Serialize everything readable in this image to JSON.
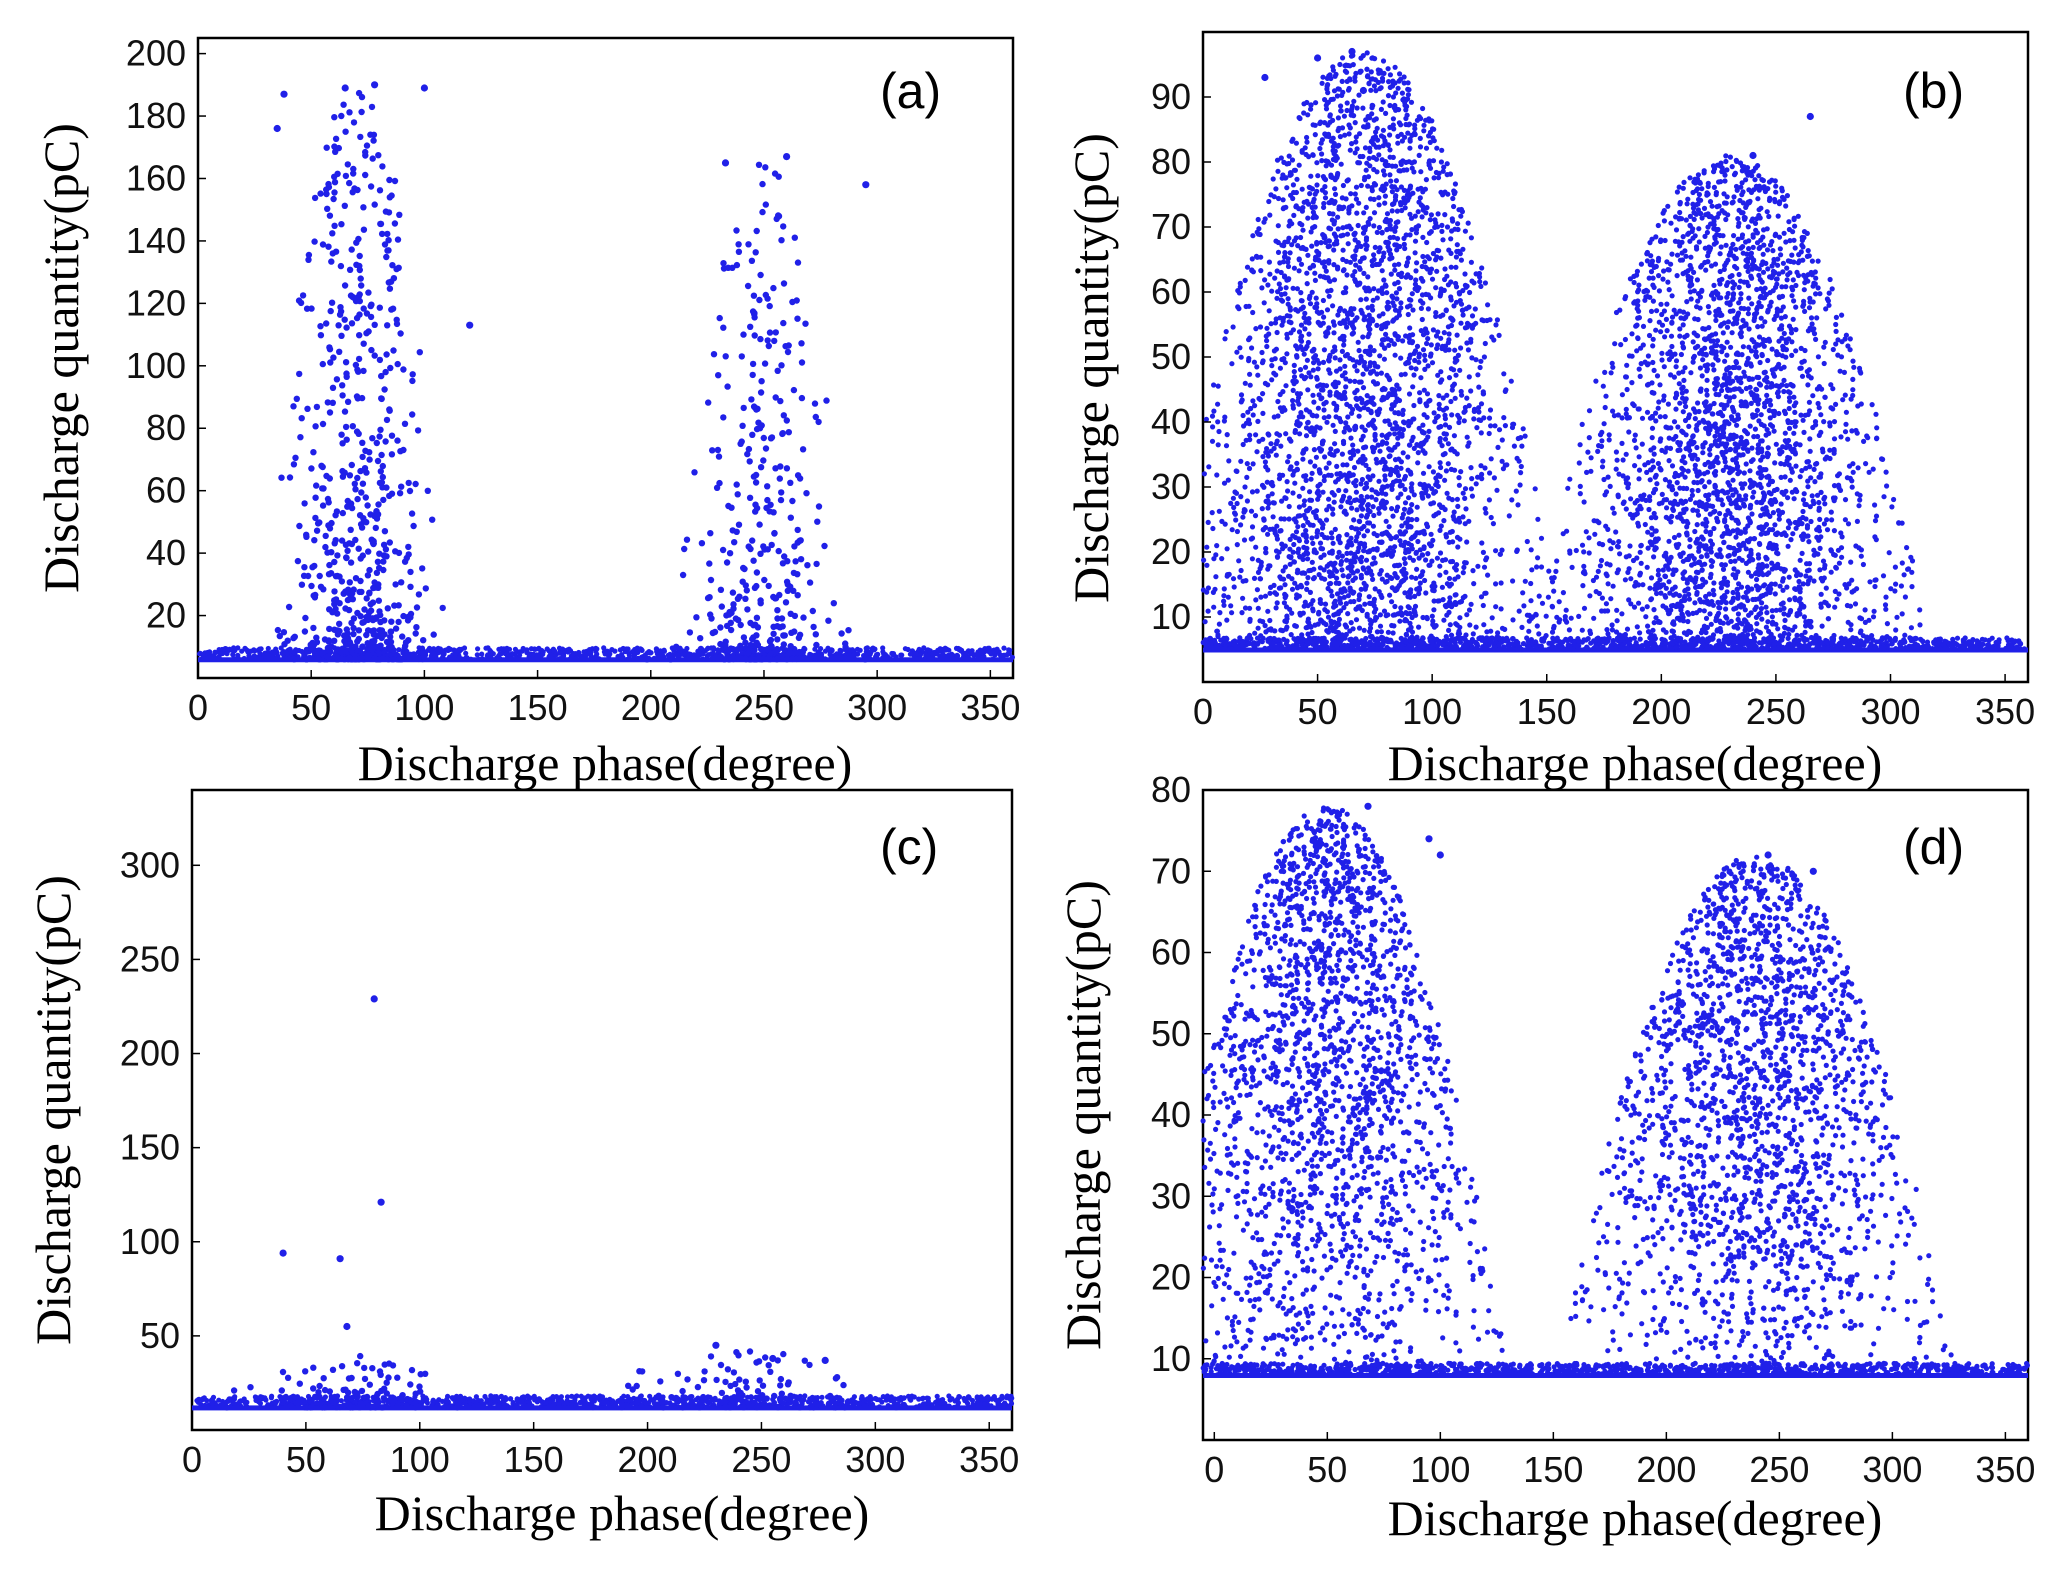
{
  "chart_data": [
    {
      "type": "scatter",
      "panel_label": "(a)",
      "xlabel": "Discharge phase(degree)",
      "ylabel": "Discharge quantity(pC)",
      "xlim": [
        0,
        360
      ],
      "ylim": [
        0,
        205
      ],
      "xticks": [
        0,
        50,
        100,
        150,
        200,
        250,
        300,
        350
      ],
      "xtick_labels": [
        "0",
        "50",
        "100",
        "150",
        "200",
        "250",
        "300",
        "350"
      ],
      "yticks": [
        20,
        40,
        60,
        80,
        100,
        120,
        140,
        160,
        180,
        200
      ],
      "ytick_labels": [
        "20",
        "40",
        "60",
        "80",
        "100",
        "120",
        "140",
        "160",
        "180",
        "200"
      ],
      "marker_color": "#2020e8",
      "baseline": 6,
      "clusters": [
        {
          "center_phase": 70,
          "phase_spread": 26,
          "max_q": 190,
          "n": 700
        },
        {
          "center_phase": 250,
          "phase_spread": 25,
          "max_q": 165,
          "n": 380
        }
      ],
      "outliers": [
        [
          65,
          189
        ],
        [
          78,
          190
        ],
        [
          100,
          189
        ],
        [
          38,
          187
        ],
        [
          35,
          176
        ],
        [
          295,
          158
        ],
        [
          120,
          113
        ],
        [
          260,
          167
        ],
        [
          233,
          165
        ]
      ]
    },
    {
      "type": "scatter",
      "panel_label": "(b)",
      "xlabel": "Discharge phase(degree)",
      "ylabel": "Discharge quantity(pC)",
      "xlim": [
        0,
        360
      ],
      "ylim": [
        0,
        100
      ],
      "xticks": [
        0,
        50,
        100,
        150,
        200,
        250,
        300,
        350
      ],
      "xtick_labels": [
        "0",
        "50",
        "100",
        "150",
        "200",
        "250",
        "300",
        "350"
      ],
      "yticks": [
        10,
        20,
        30,
        40,
        50,
        60,
        70,
        80,
        90
      ],
      "ytick_labels": [
        "10",
        "20",
        "30",
        "40",
        "50",
        "60",
        "70",
        "80",
        "90"
      ],
      "marker_color": "#2020e8",
      "baseline": 5,
      "clusters": [
        {
          "center_phase": 70,
          "phase_spread": 55,
          "max_q": 97,
          "n": 3200
        },
        {
          "center_phase": 230,
          "phase_spread": 55,
          "max_q": 81,
          "n": 2800
        }
      ],
      "outliers": [
        [
          27,
          93
        ],
        [
          50,
          96
        ],
        [
          65,
          97
        ],
        [
          70,
          91
        ],
        [
          240,
          81
        ],
        [
          265,
          87
        ]
      ]
    },
    {
      "type": "scatter",
      "panel_label": "(c)",
      "xlabel": "Discharge phase(degree)",
      "ylabel": "Discharge quantity(pC)",
      "xlim": [
        0,
        360
      ],
      "ylim": [
        0,
        340
      ],
      "xticks": [
        0,
        50,
        100,
        150,
        200,
        250,
        300,
        350
      ],
      "xtick_labels": [
        "0",
        "50",
        "100",
        "150",
        "200",
        "250",
        "300",
        "350"
      ],
      "yticks": [
        50,
        100,
        150,
        200,
        250,
        300
      ],
      "ytick_labels": [
        "50",
        "100",
        "150",
        "200",
        "250",
        "300"
      ],
      "marker_color": "#2020e8",
      "baseline": 12,
      "clusters": [
        {
          "center_phase": 70,
          "phase_spread": 40,
          "max_q": 40,
          "n": 120
        },
        {
          "center_phase": 240,
          "phase_spread": 45,
          "max_q": 45,
          "n": 120
        }
      ],
      "outliers": [
        [
          80,
          229
        ],
        [
          83,
          121
        ],
        [
          40,
          94
        ],
        [
          65,
          91
        ],
        [
          68,
          55
        ],
        [
          230,
          45
        ],
        [
          255,
          38
        ],
        [
          278,
          37
        ]
      ]
    },
    {
      "type": "scatter",
      "panel_label": "(d)",
      "xlabel": "Discharge phase(degree)",
      "ylabel": "Discharge quantity(pC)",
      "xlim": [
        -5,
        360
      ],
      "ylim": [
        0,
        80
      ],
      "xticks": [
        0,
        50,
        100,
        150,
        200,
        250,
        300,
        350
      ],
      "xtick_labels": [
        "0",
        "50",
        "100",
        "150",
        "200",
        "250",
        "300",
        "350"
      ],
      "yticks": [
        10,
        20,
        30,
        40,
        50,
        60,
        70,
        80
      ],
      "ytick_labels": [
        "10",
        "20",
        "30",
        "40",
        "50",
        "60",
        "70",
        "80"
      ],
      "marker_color": "#2020e8",
      "baseline": 8,
      "clusters": [
        {
          "center_phase": 50,
          "phase_spread": 50,
          "max_q": 78,
          "n": 2000
        },
        {
          "center_phase": 240,
          "phase_spread": 55,
          "max_q": 72,
          "n": 2000
        }
      ],
      "outliers": [
        [
          55,
          77
        ],
        [
          68,
          78
        ],
        [
          95,
          74
        ],
        [
          245,
          72
        ],
        [
          265,
          70
        ],
        [
          100,
          72
        ]
      ]
    }
  ]
}
